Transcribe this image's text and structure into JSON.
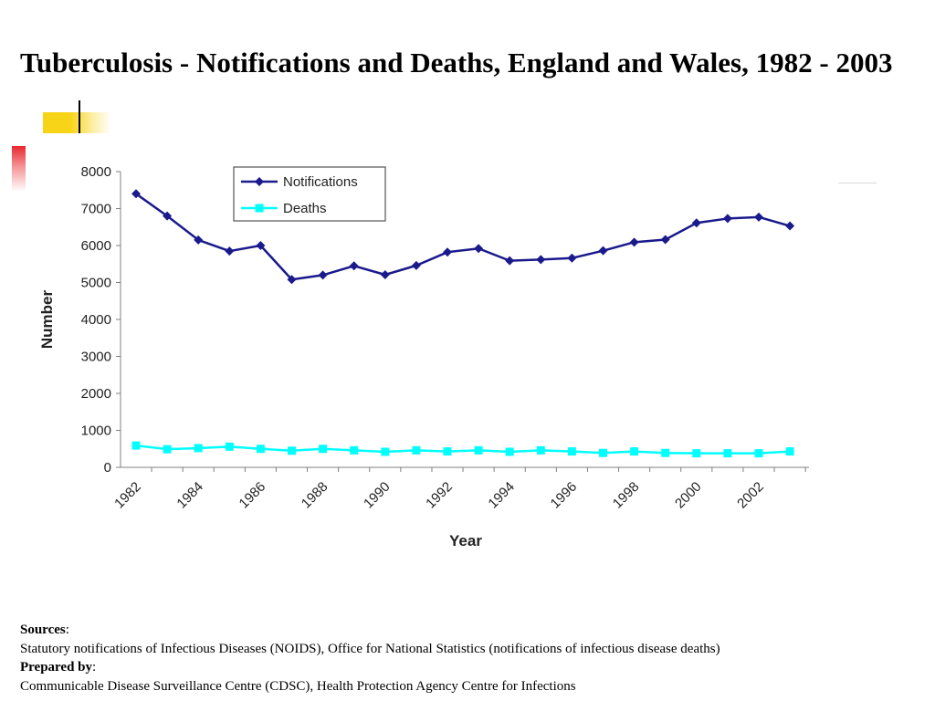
{
  "slide": {
    "title": "Tuberculosis - Notifications and Deaths, England and Wales, 1982 - 2003"
  },
  "footer": {
    "sources_label": "Sources",
    "sources_text": "Statutory notifications of Infectious Diseases (NOIDS), Office for National Statistics (notifications of infectious disease deaths)",
    "prepared_label": "Prepared by",
    "prepared_text": "Communicable Disease Surveillance Centre (CDSC), Health Protection Agency Centre for Infections"
  },
  "chart_data": {
    "type": "line",
    "title": "",
    "xlabel": "Year",
    "ylabel": "Number",
    "x": [
      1982,
      1983,
      1984,
      1985,
      1986,
      1987,
      1988,
      1989,
      1990,
      1991,
      1992,
      1993,
      1994,
      1995,
      1996,
      1997,
      1998,
      1999,
      2000,
      2001,
      2002,
      2003
    ],
    "x_tick_labels": [
      "1982",
      "1984",
      "1986",
      "1988",
      "1990",
      "1992",
      "1994",
      "1996",
      "1998",
      "2000",
      "2002"
    ],
    "ylim": [
      0,
      8000
    ],
    "y_ticks": [
      0,
      1000,
      2000,
      3000,
      4000,
      5000,
      6000,
      7000,
      8000
    ],
    "grid": false,
    "legend_position": "top-left",
    "series": [
      {
        "name": "Notifications",
        "color": "#1a1a8c",
        "marker": "diamond",
        "values": [
          7400,
          6800,
          6150,
          5850,
          6000,
          5080,
          5200,
          5450,
          5210,
          5460,
          5820,
          5920,
          5590,
          5620,
          5660,
          5860,
          6090,
          6160,
          6610,
          6730,
          6770,
          6530
        ]
      },
      {
        "name": "Deaths",
        "color": "#00ffff",
        "marker": "square",
        "values": [
          590,
          490,
          520,
          560,
          500,
          450,
          500,
          460,
          420,
          460,
          430,
          460,
          420,
          460,
          430,
          390,
          430,
          390,
          380,
          380,
          380,
          430
        ]
      }
    ]
  }
}
